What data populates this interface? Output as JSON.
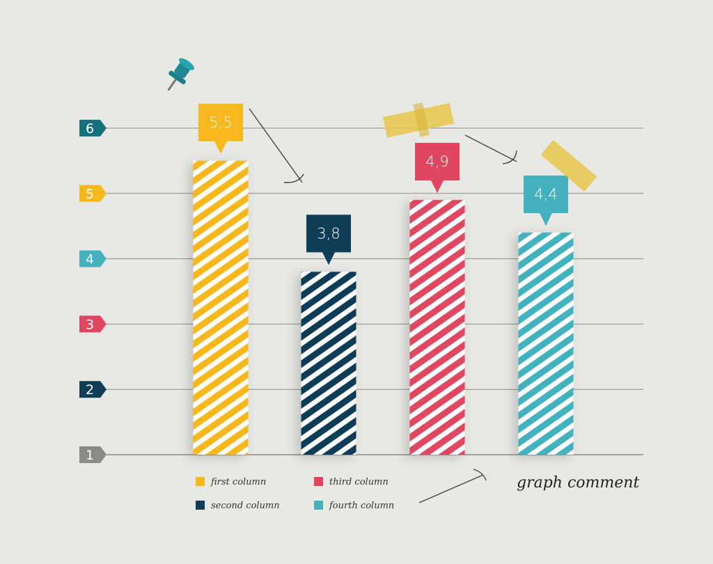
{
  "chart_data": {
    "type": "bar",
    "title": "",
    "xlabel": "",
    "ylabel": "",
    "y_ticks": [
      "1",
      "2",
      "3",
      "4",
      "5",
      "6"
    ],
    "ylim": [
      1,
      6
    ],
    "grid": true,
    "legend_position": "bottom-left",
    "categories": [
      "first column",
      "second column",
      "third column",
      "fourth column"
    ],
    "values": [
      5.5,
      3.8,
      4.9,
      4.4
    ],
    "value_labels": [
      "5,5",
      "3,8",
      "4,9",
      "4,4"
    ],
    "colors": [
      "#f6b81c",
      "#0f3d56",
      "#e04660",
      "#43b2be"
    ],
    "tick_colors": [
      "#8a8a86",
      "#0f3d56",
      "#e04660",
      "#43b2be",
      "#f6b81c",
      "#14707c"
    ],
    "annotation": "graph comment"
  }
}
